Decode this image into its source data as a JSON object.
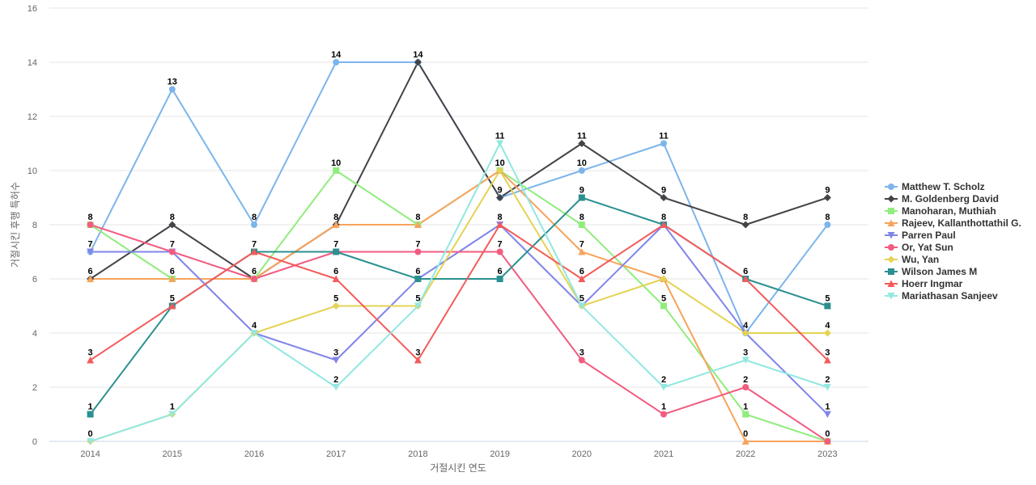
{
  "chart_data": {
    "type": "line",
    "xlabel": "거절시킨 연도",
    "ylabel": "거절시킨 후행 특허수",
    "x": [
      "2014",
      "2015",
      "2016",
      "2017",
      "2018",
      "2019",
      "2020",
      "2021",
      "2022",
      "2023"
    ],
    "ylim": [
      0,
      16
    ],
    "yticks": [
      0,
      2,
      4,
      6,
      8,
      10,
      12,
      14,
      16
    ],
    "grid": true,
    "legend_position": "right",
    "series": [
      {
        "name": "Matthew T. Scholz",
        "color": "#7cb5ec",
        "marker": "circle",
        "values": [
          7,
          13,
          8,
          14,
          14,
          9,
          10,
          11,
          4,
          8
        ]
      },
      {
        "name": "M. Goldenberg David",
        "color": "#434348",
        "marker": "diamond",
        "values": [
          6,
          8,
          6,
          8,
          14,
          9,
          11,
          9,
          8,
          9
        ]
      },
      {
        "name": "Manoharan, Muthiah",
        "color": "#90ed7d",
        "marker": "square",
        "values": [
          8,
          6,
          6,
          10,
          8,
          10,
          8,
          5,
          1,
          0
        ]
      },
      {
        "name": "Rajeev, Kallanthottathil G.",
        "color": "#f7a35c",
        "marker": "triangle",
        "values": [
          6,
          6,
          6,
          8,
          8,
          10,
          7,
          6,
          0,
          0
        ]
      },
      {
        "name": "Parren Paul",
        "color": "#8085e9",
        "marker": "triangle-down",
        "values": [
          7,
          7,
          4,
          3,
          6,
          8,
          5,
          8,
          4,
          1
        ]
      },
      {
        "name": "Or, Yat Sun",
        "color": "#f15c80",
        "marker": "circle",
        "values": [
          8,
          7,
          6,
          7,
          7,
          7,
          3,
          1,
          2,
          0
        ]
      },
      {
        "name": "Wu, Yan",
        "color": "#e4d354",
        "marker": "diamond",
        "values": [
          0,
          1,
          4,
          5,
          5,
          10,
          5,
          6,
          4,
          4
        ]
      },
      {
        "name": "Wilson James M",
        "color": "#2b908f",
        "marker": "square",
        "values": [
          1,
          5,
          7,
          7,
          6,
          6,
          9,
          8,
          6,
          5
        ]
      },
      {
        "name": "Hoerr Ingmar",
        "color": "#f45b5b",
        "marker": "triangle",
        "values": [
          3,
          5,
          7,
          6,
          3,
          8,
          6,
          8,
          6,
          3
        ]
      },
      {
        "name": "Mariathasan Sanjeev",
        "color": "#91e8e1",
        "marker": "triangle-down",
        "values": [
          0,
          1,
          4,
          2,
          5,
          11,
          5,
          2,
          3,
          2
        ]
      }
    ]
  }
}
